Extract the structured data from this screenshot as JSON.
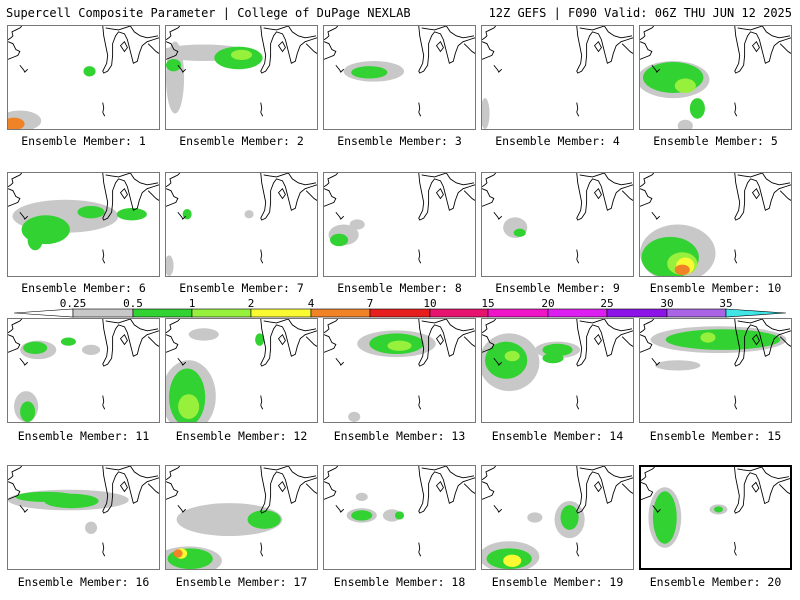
{
  "header": {
    "left": "Supercell Composite Parameter | College of DuPage NEXLAB",
    "right": "12Z GEFS | F090 Valid: 06Z THU JUN 12 2025"
  },
  "colorbar": {
    "labels": [
      "0.25",
      "0.5",
      "1",
      "2",
      "4",
      "7",
      "10",
      "15",
      "20",
      "25",
      "30",
      "35"
    ],
    "colors": [
      "#c8c8c8",
      "#32d232",
      "#96f03c",
      "#fafa32",
      "#f08228",
      "#e61e1e",
      "#e6146e",
      "#f014c8",
      "#dc1ef0",
      "#8c14e6",
      "#aa64e6",
      "#40e6e6"
    ]
  },
  "colors": {
    "gray": "#c8c8c8",
    "green": "#32d232",
    "lime": "#96f03c",
    "yellow": "#fafa32",
    "orange": "#f08228",
    "red": "#e61e1e",
    "outline": "#000000"
  },
  "panels": [
    {
      "label": "Ensemble Member: 1",
      "blobs": [
        [
          "g",
          0.54,
          0.44,
          0.04,
          0.05
        ],
        [
          "gr",
          0.08,
          0.92,
          0.14,
          0.1
        ],
        [
          "o",
          0.04,
          0.95,
          0.07,
          0.06
        ]
      ]
    },
    {
      "label": "Ensemble Member: 2",
      "blobs": [
        [
          "gr",
          0.25,
          0.26,
          0.3,
          0.08
        ],
        [
          "g",
          0.48,
          0.31,
          0.16,
          0.11
        ],
        [
          "l",
          0.5,
          0.28,
          0.07,
          0.05
        ],
        [
          "gr",
          0.06,
          0.5,
          0.06,
          0.35
        ],
        [
          "g",
          0.05,
          0.38,
          0.05,
          0.06
        ]
      ]
    },
    {
      "label": "Ensemble Member: 3",
      "blobs": [
        [
          "gr",
          0.33,
          0.44,
          0.2,
          0.1
        ],
        [
          "g",
          0.3,
          0.45,
          0.12,
          0.06
        ]
      ]
    },
    {
      "label": "Ensemble Member: 4",
      "blobs": [
        [
          "gr",
          0.02,
          0.85,
          0.03,
          0.15
        ]
      ]
    },
    {
      "label": "Ensemble Member: 5",
      "blobs": [
        [
          "gr",
          0.22,
          0.52,
          0.24,
          0.18
        ],
        [
          "g",
          0.22,
          0.5,
          0.2,
          0.15
        ],
        [
          "l",
          0.3,
          0.58,
          0.07,
          0.07
        ],
        [
          "g",
          0.38,
          0.8,
          0.05,
          0.1
        ],
        [
          "gr",
          0.3,
          0.97,
          0.05,
          0.06
        ]
      ]
    },
    {
      "label": "Ensemble Member: 6",
      "blobs": [
        [
          "gr",
          0.38,
          0.42,
          0.35,
          0.16
        ],
        [
          "g",
          0.25,
          0.55,
          0.16,
          0.14
        ],
        [
          "g",
          0.55,
          0.38,
          0.09,
          0.06
        ],
        [
          "g",
          0.82,
          0.4,
          0.1,
          0.06
        ],
        [
          "g",
          0.18,
          0.65,
          0.05,
          0.1
        ]
      ]
    },
    {
      "label": "Ensemble Member: 7",
      "blobs": [
        [
          "g",
          0.14,
          0.4,
          0.03,
          0.05
        ],
        [
          "gr",
          0.55,
          0.4,
          0.03,
          0.04
        ],
        [
          "gr",
          0.02,
          0.9,
          0.03,
          0.1
        ]
      ]
    },
    {
      "label": "Ensemble Member: 8",
      "blobs": [
        [
          "gr",
          0.13,
          0.6,
          0.1,
          0.1
        ],
        [
          "g",
          0.1,
          0.65,
          0.06,
          0.06
        ],
        [
          "gr",
          0.22,
          0.5,
          0.05,
          0.05
        ]
      ]
    },
    {
      "label": "Ensemble Member: 9",
      "blobs": [
        [
          "gr",
          0.22,
          0.53,
          0.08,
          0.1
        ],
        [
          "g",
          0.25,
          0.58,
          0.04,
          0.04
        ]
      ]
    },
    {
      "label": "Ensemble Member: 10",
      "blobs": [
        [
          "gr",
          0.25,
          0.78,
          0.25,
          0.28
        ],
        [
          "g",
          0.2,
          0.82,
          0.19,
          0.2
        ],
        [
          "l",
          0.28,
          0.88,
          0.1,
          0.11
        ],
        [
          "y",
          0.3,
          0.9,
          0.06,
          0.08
        ],
        [
          "o",
          0.28,
          0.94,
          0.05,
          0.05
        ]
      ]
    },
    {
      "label": "Ensemble Member: 11",
      "blobs": [
        [
          "gr",
          0.2,
          0.3,
          0.12,
          0.09
        ],
        [
          "g",
          0.18,
          0.28,
          0.08,
          0.06
        ],
        [
          "g",
          0.4,
          0.22,
          0.05,
          0.04
        ],
        [
          "gr",
          0.55,
          0.3,
          0.06,
          0.05
        ],
        [
          "gr",
          0.12,
          0.85,
          0.08,
          0.15
        ],
        [
          "g",
          0.13,
          0.9,
          0.05,
          0.1
        ]
      ]
    },
    {
      "label": "Ensemble Member: 12",
      "blobs": [
        [
          "gr",
          0.15,
          0.75,
          0.18,
          0.35
        ],
        [
          "g",
          0.14,
          0.76,
          0.12,
          0.28
        ],
        [
          "l",
          0.15,
          0.85,
          0.07,
          0.12
        ],
        [
          "gr",
          0.25,
          0.15,
          0.1,
          0.06
        ],
        [
          "g",
          0.62,
          0.2,
          0.03,
          0.06
        ]
      ]
    },
    {
      "label": "Ensemble Member: 13",
      "blobs": [
        [
          "gr",
          0.48,
          0.24,
          0.26,
          0.13
        ],
        [
          "g",
          0.48,
          0.24,
          0.18,
          0.1
        ],
        [
          "l",
          0.5,
          0.26,
          0.08,
          0.05
        ],
        [
          "gr",
          0.2,
          0.95,
          0.04,
          0.05
        ]
      ]
    },
    {
      "label": "Ensemble Member: 14",
      "blobs": [
        [
          "gr",
          0.18,
          0.42,
          0.2,
          0.28
        ],
        [
          "g",
          0.16,
          0.4,
          0.14,
          0.18
        ],
        [
          "gr",
          0.5,
          0.3,
          0.15,
          0.08
        ],
        [
          "g",
          0.5,
          0.3,
          0.1,
          0.06
        ],
        [
          "g",
          0.47,
          0.38,
          0.07,
          0.05
        ],
        [
          "l",
          0.2,
          0.36,
          0.05,
          0.05
        ]
      ]
    },
    {
      "label": "Ensemble Member: 15",
      "blobs": [
        [
          "gr",
          0.52,
          0.2,
          0.45,
          0.13
        ],
        [
          "g",
          0.55,
          0.2,
          0.38,
          0.1
        ],
        [
          "l",
          0.45,
          0.18,
          0.05,
          0.05
        ],
        [
          "gr",
          0.25,
          0.45,
          0.15,
          0.05
        ]
      ]
    },
    {
      "label": "Ensemble Member: 16",
      "blobs": [
        [
          "gr",
          0.4,
          0.33,
          0.4,
          0.1
        ],
        [
          "g",
          0.25,
          0.3,
          0.2,
          0.05
        ],
        [
          "g",
          0.42,
          0.34,
          0.18,
          0.07
        ],
        [
          "gr",
          0.55,
          0.6,
          0.04,
          0.06
        ]
      ]
    },
    {
      "label": "Ensemble Member: 17",
      "blobs": [
        [
          "gr",
          0.42,
          0.52,
          0.35,
          0.16
        ],
        [
          "g",
          0.65,
          0.52,
          0.11,
          0.09
        ],
        [
          "gr",
          0.15,
          0.92,
          0.22,
          0.14
        ],
        [
          "g",
          0.16,
          0.9,
          0.15,
          0.1
        ],
        [
          "y",
          0.1,
          0.85,
          0.04,
          0.05
        ],
        [
          "o",
          0.08,
          0.85,
          0.03,
          0.04
        ]
      ]
    },
    {
      "label": "Ensemble Member: 18",
      "blobs": [
        [
          "gr",
          0.25,
          0.48,
          0.1,
          0.07
        ],
        [
          "g",
          0.25,
          0.48,
          0.07,
          0.05
        ],
        [
          "gr",
          0.45,
          0.48,
          0.06,
          0.06
        ],
        [
          "g",
          0.5,
          0.48,
          0.03,
          0.04
        ],
        [
          "gr",
          0.25,
          0.3,
          0.04,
          0.04
        ]
      ]
    },
    {
      "label": "Ensemble Member: 19",
      "blobs": [
        [
          "gr",
          0.58,
          0.52,
          0.1,
          0.18
        ],
        [
          "g",
          0.58,
          0.5,
          0.06,
          0.12
        ],
        [
          "gr",
          0.18,
          0.88,
          0.2,
          0.15
        ],
        [
          "g",
          0.18,
          0.9,
          0.15,
          0.1
        ],
        [
          "y",
          0.2,
          0.92,
          0.06,
          0.06
        ],
        [
          "gr",
          0.35,
          0.5,
          0.05,
          0.05
        ]
      ]
    },
    {
      "label": "Ensemble Member: 20",
      "selected": true,
      "blobs": [
        [
          "gr",
          0.16,
          0.5,
          0.11,
          0.3
        ],
        [
          "g",
          0.16,
          0.5,
          0.08,
          0.26
        ],
        [
          "gr",
          0.52,
          0.42,
          0.06,
          0.05
        ],
        [
          "g",
          0.52,
          0.42,
          0.03,
          0.03
        ]
      ]
    }
  ]
}
